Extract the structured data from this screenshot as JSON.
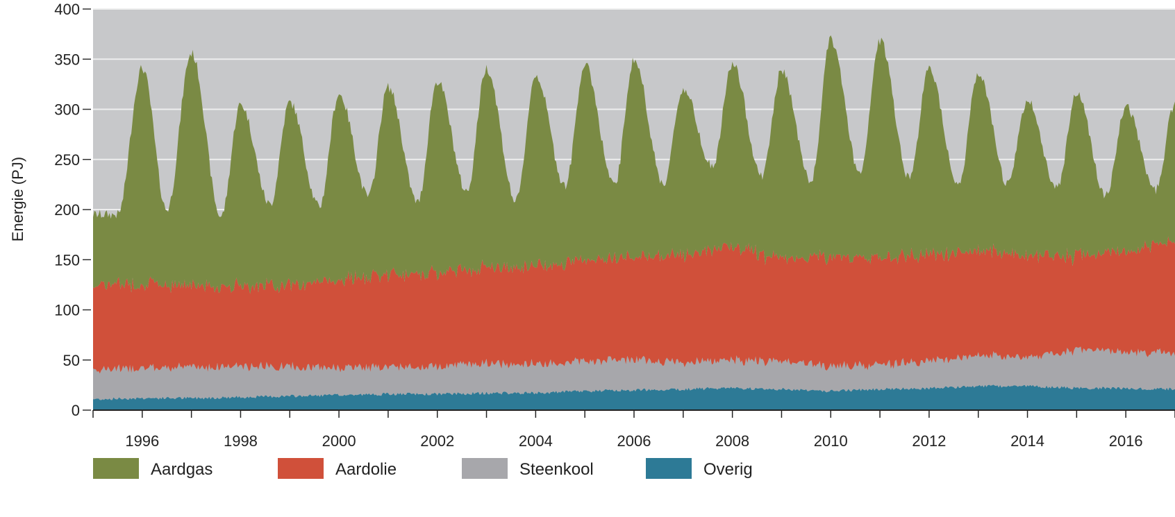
{
  "chart_data": {
    "type": "area",
    "stacked": true,
    "title": "",
    "xlabel": "",
    "ylabel": "Energie (PJ)",
    "ylim": [
      0,
      400
    ],
    "yticks": [
      0,
      50,
      100,
      150,
      200,
      250,
      300,
      350,
      400
    ],
    "xlim": [
      1995,
      2017
    ],
    "xtick_labels": [
      "1996",
      "1998",
      "2000",
      "2002",
      "2004",
      "2006",
      "2008",
      "2010",
      "2012",
      "2014",
      "2016"
    ],
    "grid": true,
    "legend_position": "bottom",
    "colors": {
      "plot_background": "#c7c8ca",
      "grid": "#eeeeee",
      "Aardgas": "#7a8a44",
      "Aardolie": "#d0503a",
      "Steenkool": "#a7a7ab",
      "Overig": "#2d7a96"
    },
    "series": [
      {
        "name": "Overig",
        "x": [
          1995,
          1996,
          1997,
          1998,
          1999,
          2000,
          2001,
          2002,
          2003,
          2004,
          2005,
          2006,
          2007,
          2008,
          2009,
          2010,
          2011,
          2012,
          2013,
          2014,
          2015,
          2016,
          2017
        ],
        "values": [
          11,
          12,
          12,
          13,
          14,
          15,
          16,
          16,
          17,
          17,
          19,
          20,
          21,
          22,
          21,
          19,
          21,
          22,
          24,
          24,
          22,
          22,
          21
        ]
      },
      {
        "name": "Steenkool",
        "x": [
          1995,
          1996,
          1997,
          1998,
          1999,
          2000,
          2001,
          2002,
          2003,
          2004,
          2005,
          2006,
          2007,
          2008,
          2009,
          2010,
          2011,
          2012,
          2013,
          2014,
          2015,
          2016,
          2017
        ],
        "values": [
          30,
          30,
          31,
          31,
          29,
          27,
          27,
          28,
          30,
          29,
          30,
          30,
          27,
          28,
          27,
          25,
          24,
          27,
          30,
          29,
          38,
          37,
          35
        ]
      },
      {
        "name": "Aardolie",
        "x": [
          1995,
          1996,
          1997,
          1998,
          1999,
          2000,
          2001,
          2002,
          2003,
          2004,
          2005,
          2006,
          2007,
          2008,
          2009,
          2010,
          2011,
          2012,
          2013,
          2014,
          2015,
          2016,
          2017
        ],
        "values": [
          85,
          84,
          82,
          80,
          82,
          88,
          92,
          93,
          96,
          98,
          101,
          102,
          108,
          113,
          102,
          110,
          107,
          106,
          104,
          103,
          93,
          100,
          112
        ]
      },
      {
        "name": "Aardgas",
        "x": [
          1995,
          1996,
          1997,
          1998,
          1999,
          2000,
          2001,
          2002,
          2003,
          2004,
          2005,
          2006,
          2007,
          2008,
          2009,
          2010,
          2011,
          2012,
          2013,
          2014,
          2015,
          2016,
          2017
        ],
        "values": [
          105,
          112,
          115,
          110,
          108,
          105,
          104,
          103,
          103,
          105,
          105,
          108,
          90,
          95,
          105,
          120,
          110,
          103,
          95,
          88,
          95,
          85,
          100
        ]
      }
    ],
    "seasonal_note_values": {
      "Aardgas_peaks": [
        {
          "x": 1996.0,
          "total": 341
        },
        {
          "x": 1997.0,
          "total": 356
        },
        {
          "x": 1998.0,
          "total": 305
        },
        {
          "x": 1999.0,
          "total": 307
        },
        {
          "x": 2000.0,
          "total": 315
        },
        {
          "x": 2001.0,
          "total": 322
        },
        {
          "x": 2002.0,
          "total": 328
        },
        {
          "x": 2003.0,
          "total": 341
        },
        {
          "x": 2004.0,
          "total": 334
        },
        {
          "x": 2005.0,
          "total": 344
        },
        {
          "x": 2006.0,
          "total": 349
        },
        {
          "x": 2007.0,
          "total": 320
        },
        {
          "x": 2008.0,
          "total": 345
        },
        {
          "x": 2009.0,
          "total": 338
        },
        {
          "x": 2010.0,
          "total": 369
        },
        {
          "x": 2011.0,
          "total": 368
        },
        {
          "x": 2012.0,
          "total": 340
        },
        {
          "x": 2013.0,
          "total": 335
        },
        {
          "x": 2014.0,
          "total": 308
        },
        {
          "x": 2015.0,
          "total": 316
        },
        {
          "x": 2016.0,
          "total": 302
        },
        {
          "x": 2017.0,
          "total": 305
        }
      ],
      "Aardgas_troughs": [
        {
          "x": 1995.5,
          "total": 195
        },
        {
          "x": 1996.5,
          "total": 200
        },
        {
          "x": 1997.6,
          "total": 193
        },
        {
          "x": 1998.6,
          "total": 205
        },
        {
          "x": 1999.6,
          "total": 203
        },
        {
          "x": 2000.6,
          "total": 213
        },
        {
          "x": 2001.6,
          "total": 207
        },
        {
          "x": 2002.6,
          "total": 218
        },
        {
          "x": 2003.6,
          "total": 208
        },
        {
          "x": 2004.6,
          "total": 224
        },
        {
          "x": 2005.6,
          "total": 224
        },
        {
          "x": 2006.6,
          "total": 226
        },
        {
          "x": 2007.6,
          "total": 243
        },
        {
          "x": 2008.6,
          "total": 234
        },
        {
          "x": 2009.6,
          "total": 228
        },
        {
          "x": 2010.6,
          "total": 235
        },
        {
          "x": 2011.6,
          "total": 232
        },
        {
          "x": 2012.6,
          "total": 225
        },
        {
          "x": 2013.6,
          "total": 226
        },
        {
          "x": 2014.6,
          "total": 222
        },
        {
          "x": 2015.6,
          "total": 214
        },
        {
          "x": 2016.6,
          "total": 220
        }
      ]
    }
  },
  "legend": [
    {
      "label": "Aardgas",
      "color": "#7a8a44"
    },
    {
      "label": "Aardolie",
      "color": "#d0503a"
    },
    {
      "label": "Steenkool",
      "color": "#a7a7ab"
    },
    {
      "label": "Overig",
      "color": "#2d7a96"
    }
  ]
}
